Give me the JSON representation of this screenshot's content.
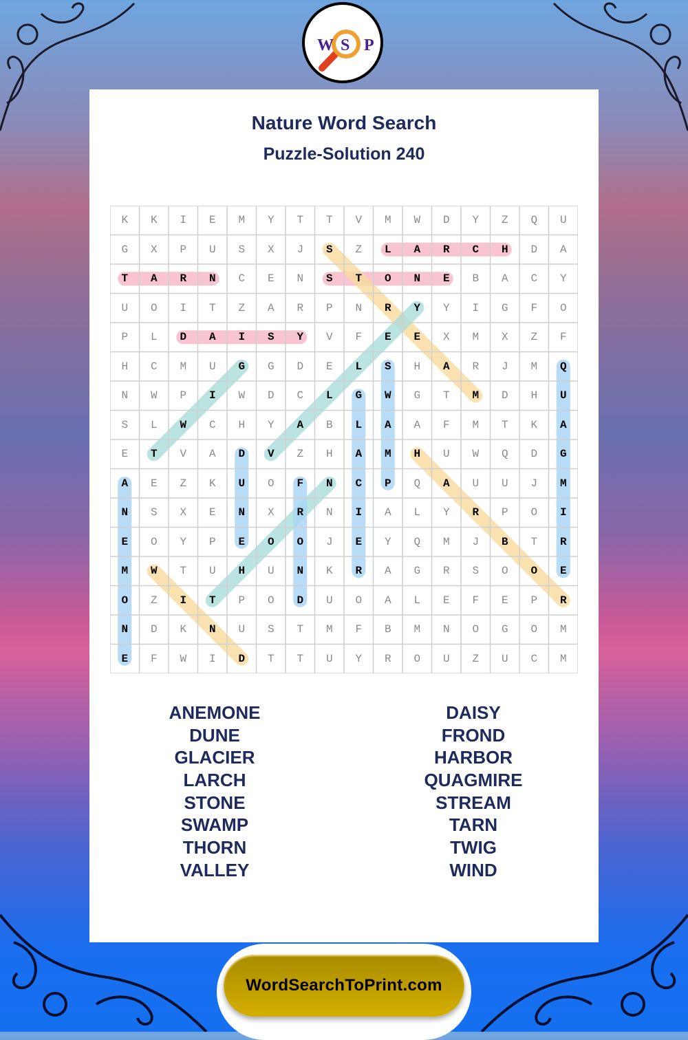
{
  "logo": {
    "letters": [
      "W",
      "S",
      "P"
    ]
  },
  "header": {
    "title": "Nature Word Search",
    "subtitle": "Puzzle-Solution 240"
  },
  "grid": {
    "rows": [
      "KKIEMYTTVMWDYZQU",
      "GXPUSXJSZLARCHDA",
      "TARNCENSTONEBACY",
      "UOITZARPNRYYIGFO",
      "PLDAISYVFEEXMXZF",
      "HCMUGGDELSHARJMQ",
      "NWPIWDCLGWGTMDHU",
      "SLWCHYABLAAFMTKA",
      "ETVADVZHAMHUWQDG",
      "AEZKUOFNCPQAUUJM",
      "NSXENXRNIALYRPOI",
      "EOYPEOOJEYQMJBTR",
      "MWTUHUNKRAGRSOOE",
      "OZITPODUOALEFEPR",
      "NDKNUSTMFBMNOGOM",
      "EFWIDTTUYROUZUCM"
    ]
  },
  "solutions": [
    {
      "word": "TARN",
      "from": [
        2,
        0
      ],
      "to": [
        2,
        3
      ],
      "color": "#f7b6c8"
    },
    {
      "word": "STONE",
      "from": [
        2,
        7
      ],
      "to": [
        2,
        11
      ],
      "color": "#f7b6c8"
    },
    {
      "word": "LARCH",
      "from": [
        1,
        9
      ],
      "to": [
        1,
        13
      ],
      "color": "#f7b6c8"
    },
    {
      "word": "DAISY",
      "from": [
        4,
        2
      ],
      "to": [
        4,
        6
      ],
      "color": "#f7b6c8"
    },
    {
      "word": "STREAM",
      "from": [
        1,
        7
      ],
      "to": [
        6,
        12
      ],
      "color": "#f8dc9c"
    },
    {
      "word": "HARBOR",
      "from": [
        8,
        10
      ],
      "to": [
        13,
        15
      ],
      "color": "#f8dc9c"
    },
    {
      "word": "WIND",
      "from": [
        12,
        1
      ],
      "to": [
        15,
        4
      ],
      "color": "#f8dc9c"
    },
    {
      "word": "TWIG",
      "from": [
        8,
        1
      ],
      "to": [
        5,
        4
      ],
      "color": "#a8dedc"
    },
    {
      "word": "VALLEY",
      "from": [
        8,
        5
      ],
      "to": [
        3,
        10
      ],
      "color": "#a8dedc"
    },
    {
      "word": "THORN",
      "from": [
        13,
        3
      ],
      "to": [
        9,
        7
      ],
      "color": "#a8dedc"
    },
    {
      "word": "ANEMONE",
      "from": [
        9,
        0
      ],
      "to": [
        15,
        0
      ],
      "color": "#a8d4f4"
    },
    {
      "word": "DUNE",
      "from": [
        8,
        4
      ],
      "to": [
        11,
        4
      ],
      "color": "#a8d4f4"
    },
    {
      "word": "FROND",
      "from": [
        9,
        6
      ],
      "to": [
        13,
        6
      ],
      "color": "#a8d4f4"
    },
    {
      "word": "GLACIER",
      "from": [
        6,
        8
      ],
      "to": [
        12,
        8
      ],
      "color": "#a8d4f4"
    },
    {
      "word": "SWAMP",
      "from": [
        5,
        9
      ],
      "to": [
        9,
        9
      ],
      "color": "#a8d4f4"
    },
    {
      "word": "QUAGMIRE",
      "from": [
        5,
        15
      ],
      "to": [
        12,
        15
      ],
      "color": "#a8d4f4"
    }
  ],
  "word_list": {
    "left": [
      "ANEMONE",
      "DUNE",
      "GLACIER",
      "LARCH",
      "STONE",
      "SWAMP",
      "THORN",
      "VALLEY"
    ],
    "right": [
      "DAISY",
      "FROND",
      "HARBOR",
      "QUAGMIRE",
      "STREAM",
      "TARN",
      "TWIG",
      "WIND"
    ]
  },
  "footer": {
    "site": "WordSearchToPrint.com"
  }
}
